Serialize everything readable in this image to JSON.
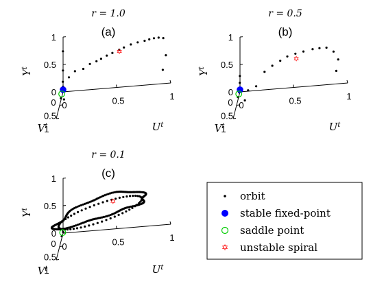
{
  "chart_data": [
    {
      "type": "scatter",
      "panel_label": "(a)",
      "title": "r = 1.0",
      "xlabel": "V^t",
      "ylabel": "U^t",
      "zlabel": "Y^t",
      "v_ticks": [
        "0",
        "0.5",
        "1"
      ],
      "u_ticks": [
        "0",
        "0.5",
        "1"
      ],
      "y_ticks": [
        "0",
        "0.5",
        "1"
      ],
      "orbit": [
        [
          0.02,
          0.0,
          0.75
        ],
        [
          0.02,
          0.0,
          0.4
        ],
        [
          0.03,
          0.0,
          0.2
        ],
        [
          0.01,
          0.0,
          0.1
        ],
        [
          0.1,
          0.0,
          0.05
        ],
        [
          0.32,
          0.0,
          0.04
        ],
        [
          0.5,
          0.04,
          0.1
        ],
        [
          0.72,
          0.1,
          0.6
        ],
        [
          0.78,
          0.16,
          0.73
        ],
        [
          0.82,
          0.24,
          0.78
        ],
        [
          0.8,
          0.3,
          0.85
        ],
        [
          0.78,
          0.36,
          0.88
        ],
        [
          0.74,
          0.4,
          0.9
        ],
        [
          0.7,
          0.45,
          0.93
        ],
        [
          0.66,
          0.5,
          0.95
        ],
        [
          0.6,
          0.56,
          0.97
        ],
        [
          0.55,
          0.6,
          0.98
        ],
        [
          0.48,
          0.66,
          0.99
        ],
        [
          0.42,
          0.72,
          0.99
        ],
        [
          0.36,
          0.78,
          0.98
        ],
        [
          0.3,
          0.82,
          0.97
        ],
        [
          0.25,
          0.86,
          0.96
        ],
        [
          0.2,
          0.9,
          0.94
        ],
        [
          0.15,
          0.94,
          0.9
        ],
        [
          0.08,
          0.96,
          0.55
        ],
        [
          0.06,
          0.93,
          0.28
        ]
      ],
      "stable_fixed_point": [
        [
          0.0,
          0.0,
          0.04
        ]
      ],
      "saddle_point": [
        [
          0.2,
          0.0,
          0.06
        ]
      ],
      "unstable_spiral": [
        [
          0.58,
          0.56,
          0.93
        ]
      ]
    },
    {
      "type": "scatter",
      "panel_label": "(b)",
      "title": "r = 0.5",
      "xlabel": "V^t",
      "ylabel": "U^t",
      "zlabel": "Y^t",
      "v_ticks": [
        "0",
        "0.5",
        "1"
      ],
      "u_ticks": [
        "0",
        "0.5",
        "1"
      ],
      "y_ticks": [
        "0",
        "0.5",
        "1"
      ],
      "orbit": [
        [
          0.02,
          0.0,
          0.3
        ],
        [
          0.03,
          0.0,
          0.18
        ],
        [
          0.05,
          0.0,
          0.1
        ],
        [
          0.02,
          0.0,
          0.06
        ],
        [
          0.12,
          0.0,
          0.05
        ],
        [
          0.3,
          0.0,
          0.05
        ],
        [
          0.55,
          0.08,
          0.1
        ],
        [
          0.7,
          0.12,
          0.35
        ],
        [
          0.78,
          0.2,
          0.45
        ],
        [
          0.82,
          0.28,
          0.72
        ],
        [
          0.78,
          0.35,
          0.8
        ],
        [
          0.72,
          0.42,
          0.85
        ],
        [
          0.64,
          0.48,
          0.88
        ],
        [
          0.56,
          0.55,
          0.88
        ],
        [
          0.48,
          0.62,
          0.87
        ],
        [
          0.4,
          0.7,
          0.86
        ],
        [
          0.34,
          0.76,
          0.84
        ],
        [
          0.26,
          0.82,
          0.8
        ],
        [
          0.18,
          0.88,
          0.68
        ],
        [
          0.12,
          0.92,
          0.5
        ],
        [
          0.09,
          0.9,
          0.28
        ]
      ],
      "stable_fixed_point": [
        [
          0.0,
          0.0,
          0.04
        ]
      ],
      "saddle_point": [
        [
          0.18,
          0.0,
          0.05
        ]
      ],
      "unstable_spiral": [
        [
          0.58,
          0.56,
          0.8
        ]
      ]
    },
    {
      "type": "scatter",
      "panel_label": "(c)",
      "title": "r = 0.1",
      "xlabel": "V^t",
      "ylabel": "U^t",
      "zlabel": "Y^t",
      "v_ticks": [
        "0",
        "0.5",
        "1"
      ],
      "u_ticks": [
        "0",
        "0.5",
        "1"
      ],
      "y_ticks": [
        "0",
        "0.5",
        "1"
      ],
      "orbit_loop": {
        "center": [
          0.55,
          0.38,
          0.63
        ],
        "radius_v": 0.42,
        "radius_u": 0.42,
        "radius_y": 0.2,
        "points": 180
      },
      "orbit": [
        [
          0.0,
          0.0,
          0.02
        ],
        [
          0.2,
          0.0,
          0.04
        ]
      ],
      "stable_fixed_point": [],
      "saddle_point": [
        [
          0.06,
          0.0,
          0.04
        ]
      ],
      "unstable_spiral": [
        [
          0.58,
          0.5,
          0.78
        ]
      ]
    }
  ],
  "legend": {
    "placement": "bottom-right",
    "items": [
      {
        "key": "orbit",
        "label": "orbit",
        "color": "#000000"
      },
      {
        "key": "stable",
        "label": "stable fixed-point",
        "color": "#0000ff"
      },
      {
        "key": "saddle",
        "label": "saddle point",
        "color": "#00cc00"
      },
      {
        "key": "unstable",
        "label": "unstable spiral",
        "color": "#ff0000"
      }
    ]
  }
}
